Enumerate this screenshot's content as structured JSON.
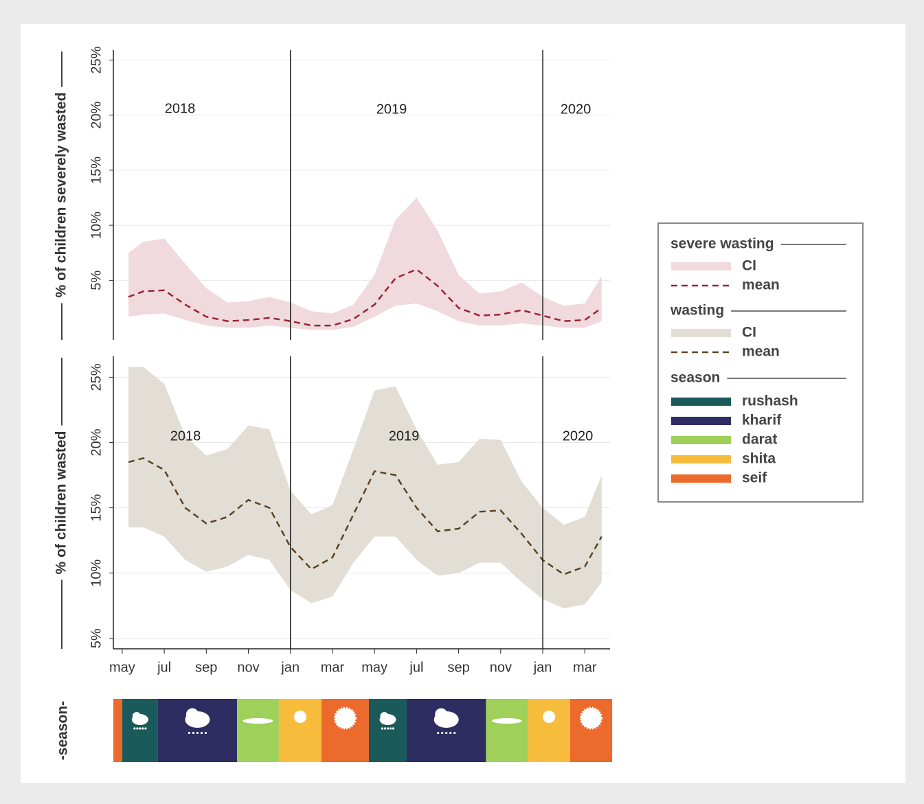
{
  "chart_data": [
    {
      "type": "band-line",
      "legend_title": "severe wasting",
      "y_label": "% of children severely wasted",
      "annotations": [
        "2018",
        "2019",
        "2020"
      ],
      "vlines": [
        8,
        20
      ],
      "xlim": [
        -0.42,
        23.2
      ],
      "ylim": [
        -0.4,
        25.9
      ],
      "yticks": [
        {
          "value": 5,
          "label": "5%"
        },
        {
          "value": 10,
          "label": "10%"
        },
        {
          "value": 15,
          "label": "15%"
        },
        {
          "value": 20,
          "label": "20%"
        },
        {
          "value": 25,
          "label": "25%"
        }
      ],
      "grid": true,
      "x": [
        0.3,
        1,
        2,
        3,
        4,
        5,
        6,
        7,
        8,
        9,
        10,
        11,
        12,
        13,
        14,
        15,
        16,
        17,
        18,
        19,
        20,
        21,
        22,
        22.8
      ],
      "series": [
        {
          "name": "CI",
          "color": "#f0dadd",
          "upper": [
            7.5,
            8.5,
            8.8,
            6.5,
            4.3,
            3.0,
            3.1,
            3.5,
            3.0,
            2.2,
            2.0,
            2.8,
            5.5,
            10.5,
            12.5,
            9.5,
            5.5,
            3.8,
            4.0,
            4.8,
            3.5,
            2.7,
            2.9,
            5.4
          ],
          "lower": [
            1.7,
            1.9,
            2.0,
            1.4,
            0.9,
            0.7,
            0.7,
            0.9,
            0.7,
            0.5,
            0.5,
            0.8,
            1.7,
            2.7,
            2.9,
            2.2,
            1.3,
            0.9,
            0.9,
            1.1,
            0.9,
            0.7,
            0.7,
            1.3
          ]
        },
        {
          "name": "mean",
          "color": "#9b2335",
          "values": [
            3.5,
            4.0,
            4.1,
            2.8,
            1.7,
            1.3,
            1.4,
            1.6,
            1.3,
            0.9,
            0.9,
            1.5,
            2.8,
            5.2,
            6.0,
            4.5,
            2.5,
            1.8,
            1.9,
            2.3,
            1.8,
            1.3,
            1.4,
            2.5
          ]
        }
      ]
    },
    {
      "type": "band-line",
      "legend_title": "wasting",
      "y_label": "% of children wasted",
      "annotations": [
        "2018",
        "2019",
        "2020"
      ],
      "vlines": [
        8,
        20
      ],
      "xlim": [
        -0.42,
        23.2
      ],
      "ylim": [
        4.2,
        26.6
      ],
      "xticks": [
        {
          "value": 0,
          "label": "may"
        },
        {
          "value": 2,
          "label": "jul"
        },
        {
          "value": 4,
          "label": "sep"
        },
        {
          "value": 6,
          "label": "nov"
        },
        {
          "value": 8,
          "label": "jan"
        },
        {
          "value": 10,
          "label": "mar"
        },
        {
          "value": 12,
          "label": "may"
        },
        {
          "value": 14,
          "label": "jul"
        },
        {
          "value": 16,
          "label": "sep"
        },
        {
          "value": 18,
          "label": "nov"
        },
        {
          "value": 20,
          "label": "jan"
        },
        {
          "value": 22,
          "label": "mar"
        }
      ],
      "yticks": [
        {
          "value": 5,
          "label": "5%"
        },
        {
          "value": 10,
          "label": "10%"
        },
        {
          "value": 15,
          "label": "15%"
        },
        {
          "value": 20,
          "label": "20%"
        },
        {
          "value": 25,
          "label": "25%"
        }
      ],
      "grid": true,
      "x": [
        0.3,
        1,
        2,
        3,
        4,
        5,
        6,
        7,
        8,
        9,
        10,
        11,
        12,
        13,
        14,
        15,
        16,
        17,
        18,
        19,
        20,
        21,
        22,
        22.8
      ],
      "series": [
        {
          "name": "CI",
          "color": "#e3ded5",
          "upper": [
            25.8,
            25.8,
            24.5,
            20.5,
            19.0,
            19.5,
            21.3,
            21.0,
            16.3,
            14.5,
            15.2,
            19.5,
            24.0,
            24.3,
            21.0,
            18.3,
            18.5,
            20.3,
            20.2,
            17.0,
            15.0,
            13.7,
            14.3,
            17.5
          ],
          "lower": [
            13.5,
            13.5,
            12.8,
            11.0,
            10.1,
            10.5,
            11.4,
            11.0,
            8.7,
            7.7,
            8.2,
            10.8,
            12.8,
            12.8,
            11.0,
            9.8,
            10.0,
            10.8,
            10.8,
            9.3,
            8.0,
            7.3,
            7.6,
            9.3
          ]
        },
        {
          "name": "mean",
          "color": "#5c4320",
          "values": [
            18.5,
            18.8,
            17.9,
            15.0,
            13.8,
            14.3,
            15.6,
            15.0,
            12.0,
            10.3,
            11.2,
            14.5,
            17.8,
            17.5,
            15.0,
            13.2,
            13.4,
            14.7,
            14.8,
            13.0,
            11.0,
            9.9,
            10.5,
            12.8
          ]
        }
      ]
    }
  ],
  "season": {
    "title": "season",
    "label": "-season-",
    "seasons": [
      {
        "name": "rushash",
        "color": "#1b5a5a"
      },
      {
        "name": "kharif",
        "color": "#2d2d62"
      },
      {
        "name": "darat",
        "color": "#9fd05a"
      },
      {
        "name": "shita",
        "color": "#f8bc3c"
      },
      {
        "name": "seif",
        "color": "#ec6a2c"
      }
    ],
    "segments": [
      {
        "season": "seif",
        "start": -0.42,
        "end": 0
      },
      {
        "season": "rushash",
        "start": 0,
        "end": 1.7
      },
      {
        "season": "kharif",
        "start": 1.7,
        "end": 5.46
      },
      {
        "season": "darat",
        "start": 5.46,
        "end": 7.45
      },
      {
        "season": "shita",
        "start": 7.45,
        "end": 9.48
      },
      {
        "season": "seif",
        "start": 9.48,
        "end": 11.73
      },
      {
        "season": "rushash",
        "start": 11.73,
        "end": 13.53
      },
      {
        "season": "kharif",
        "start": 13.53,
        "end": 17.3
      },
      {
        "season": "darat",
        "start": 17.3,
        "end": 19.3
      },
      {
        "season": "shita",
        "start": 19.3,
        "end": 21.3
      },
      {
        "season": "seif",
        "start": 21.3,
        "end": 23.3
      }
    ]
  }
}
